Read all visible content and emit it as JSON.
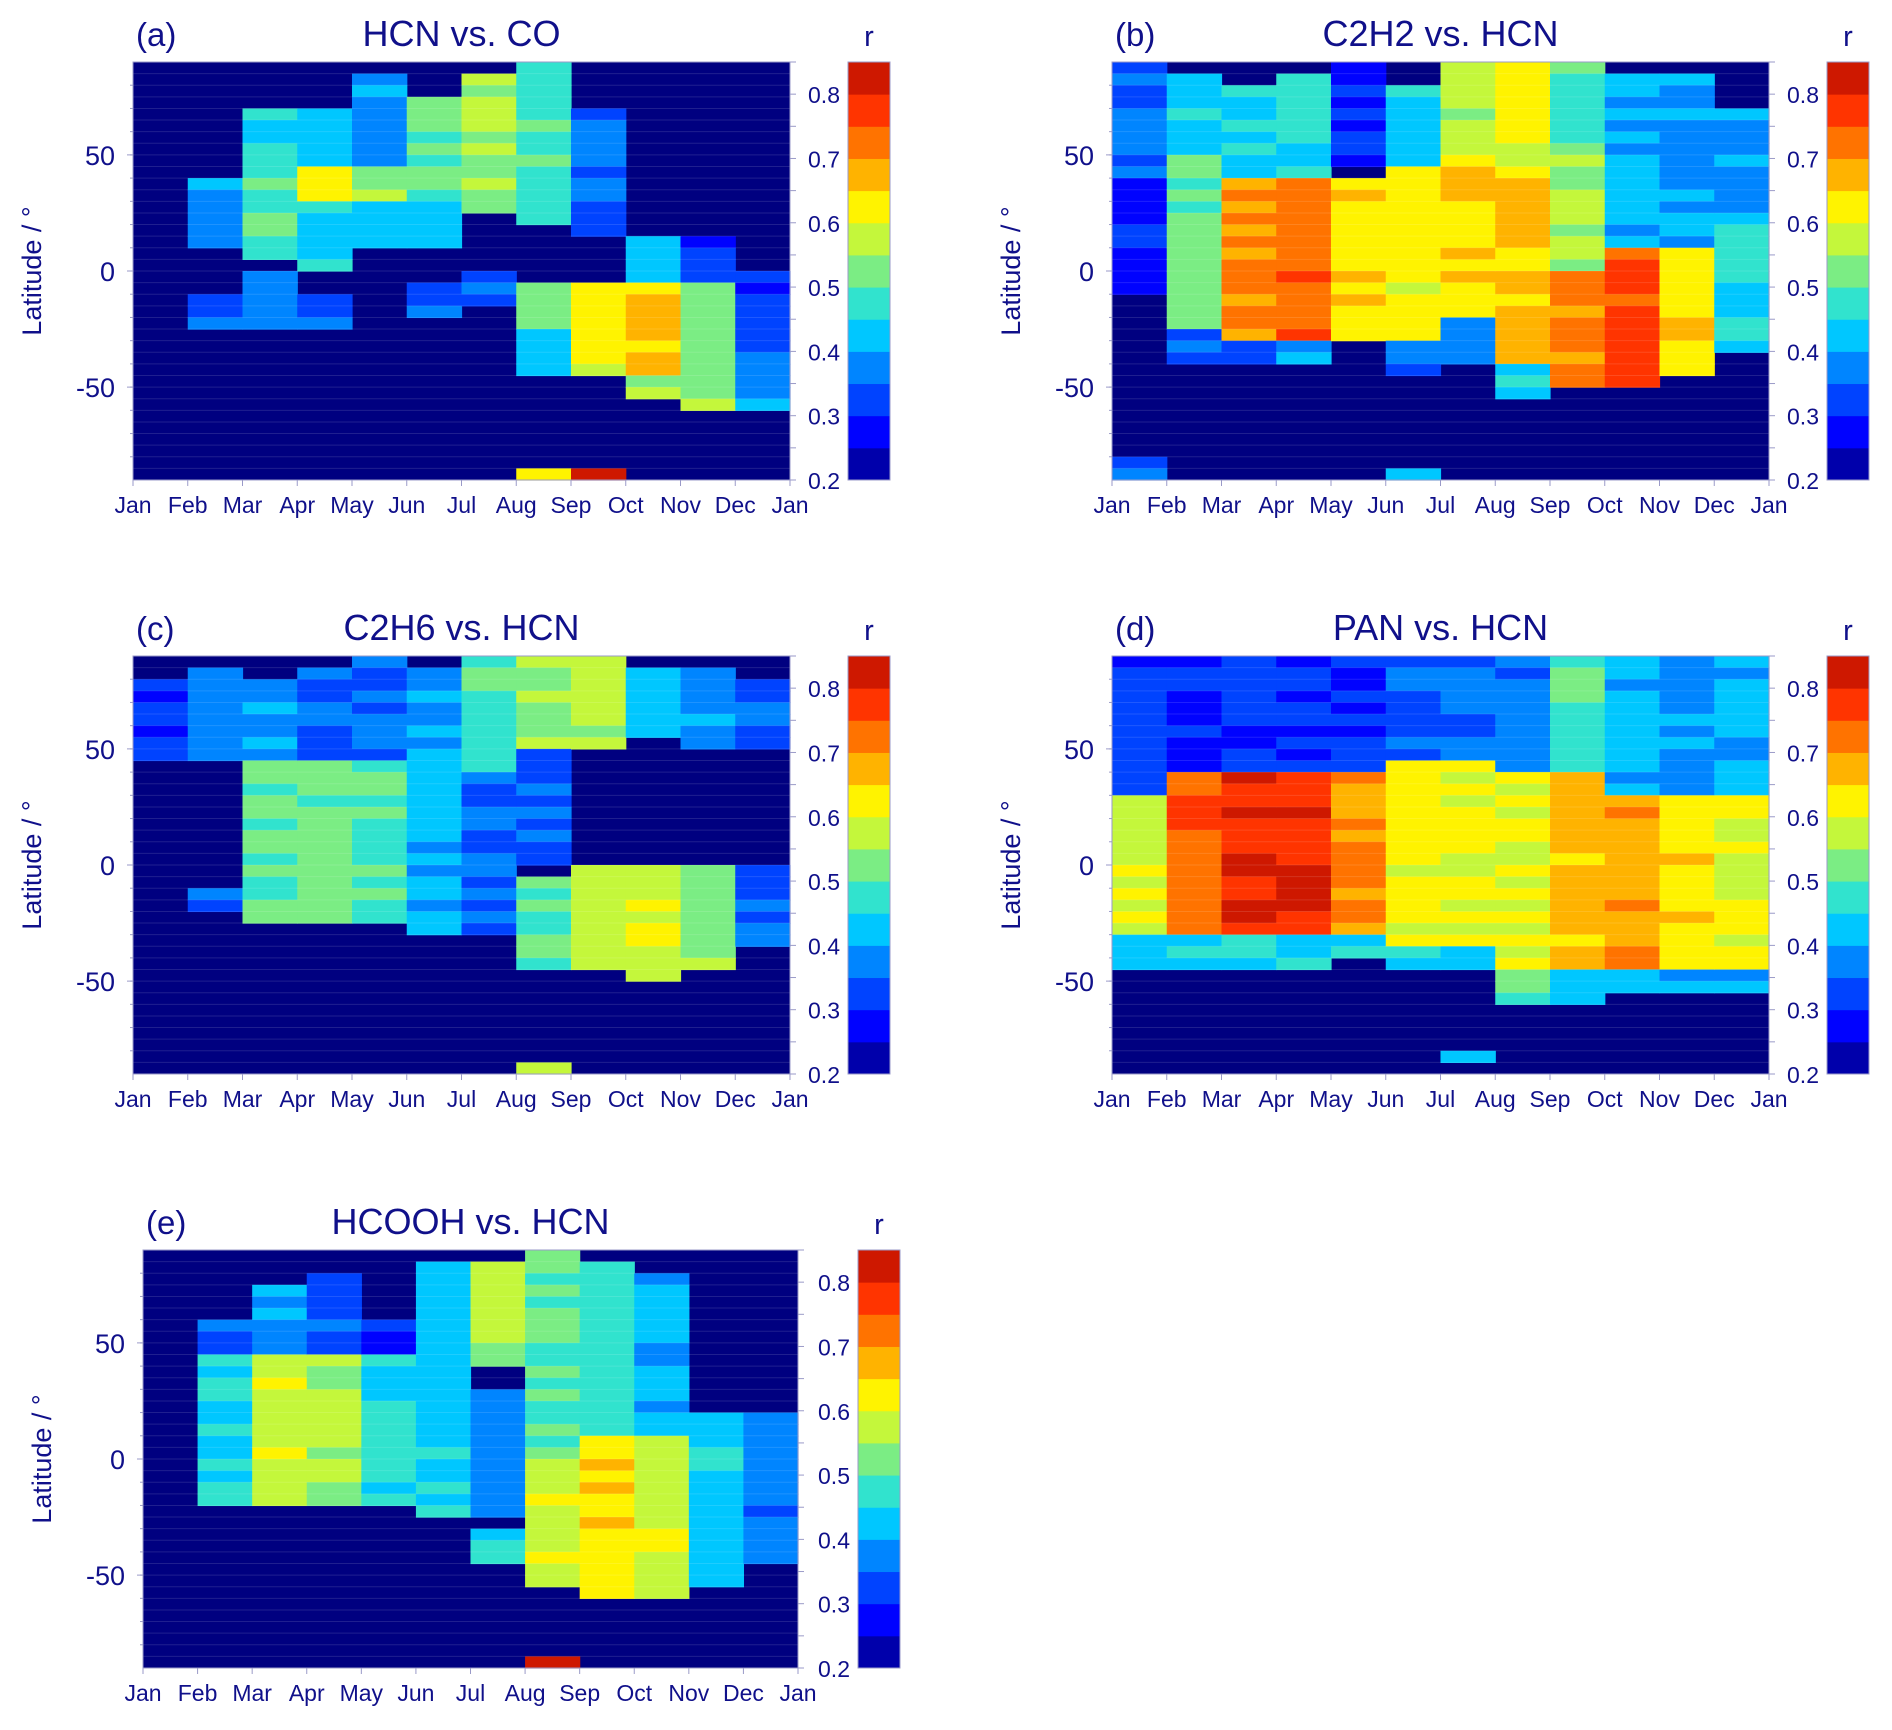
{
  "chart_data": [
    {
      "type": "heatmap",
      "panel_label": "(a)",
      "title": "HCN vs. CO",
      "ylabel": "Latitude / °",
      "xticks": [
        "Jan",
        "Feb",
        "Mar",
        "Apr",
        "May",
        "Jun",
        "Jul",
        "Aug",
        "Sep",
        "Oct",
        "Nov",
        "Dec",
        "Jan"
      ],
      "yticks": [
        "50",
        "0",
        "-50"
      ],
      "colorbar_label": "r",
      "colorbar_ticks": [
        "0.8",
        "0.7",
        "0.6",
        "0.5",
        "0.4",
        "0.3",
        "0.2"
      ],
      "ylim": [
        -90,
        90
      ],
      "zlim": [
        0.2,
        0.85
      ],
      "grid_rows": 36,
      "profiles": [
        [],
        [
          [
            10,
            40,
            0.39
          ],
          [
            -25,
            -10,
            0.33
          ]
        ],
        [
          [
            5,
            45,
            0.48
          ],
          [
            45,
            70,
            0.47
          ],
          [
            -25,
            0,
            0.37
          ]
        ],
        [
          [
            30,
            45,
            0.63
          ],
          [
            0,
            30,
            0.43
          ],
          [
            45,
            70,
            0.43
          ],
          [
            -25,
            -10,
            0.37
          ]
        ],
        [
          [
            30,
            45,
            0.56
          ],
          [
            45,
            85,
            0.38
          ],
          [
            10,
            30,
            0.43
          ]
        ],
        [
          [
            35,
            75,
            0.52
          ],
          [
            10,
            35,
            0.43
          ],
          [
            -20,
            -5,
            0.35
          ]
        ],
        [
          [
            25,
            85,
            0.54
          ],
          [
            -15,
            0,
            0.33
          ]
        ],
        [
          [
            20,
            90,
            0.48
          ],
          [
            -25,
            -5,
            0.55
          ],
          [
            -45,
            -25,
            0.45
          ],
          [
            -90,
            -85,
            0.6
          ]
        ],
        [
          [
            -45,
            -5,
            0.62
          ],
          [
            15,
            70,
            0.35
          ],
          [
            -90,
            -85,
            0.85
          ]
        ],
        [
          [
            -45,
            -5,
            0.66
          ],
          [
            -55,
            -45,
            0.55
          ],
          [
            -5,
            15,
            0.4
          ]
        ],
        [
          [
            -60,
            -5,
            0.53
          ],
          [
            -5,
            15,
            0.32
          ]
        ],
        [
          [
            -60,
            -35,
            0.4
          ],
          [
            -35,
            0,
            0.32
          ]
        ]
      ]
    },
    {
      "type": "heatmap",
      "panel_label": "(b)",
      "title": "C2H2 vs. HCN",
      "ylabel": "Latitude / °",
      "xticks": [
        "Jan",
        "Feb",
        "Mar",
        "Apr",
        "May",
        "Jun",
        "Jul",
        "Aug",
        "Sep",
        "Oct",
        "Nov",
        "Dec",
        "Jan"
      ],
      "yticks": [
        "50",
        "0",
        "-50"
      ],
      "colorbar_label": "r",
      "colorbar_ticks": [
        "0.8",
        "0.7",
        "0.6",
        "0.5",
        "0.4",
        "0.3",
        "0.2"
      ],
      "ylim": [
        -90,
        90
      ],
      "zlim": [
        0.2,
        0.85
      ],
      "grid_rows": 36,
      "profiles": [
        [
          [
            40,
            90,
            0.36
          ],
          [
            -10,
            40,
            0.29
          ],
          [
            -90,
            -80,
            0.33
          ]
        ],
        [
          [
            -25,
            50,
            0.52
          ],
          [
            50,
            85,
            0.45
          ],
          [
            -40,
            -25,
            0.36
          ]
        ],
        [
          [
            -30,
            40,
            0.72
          ],
          [
            40,
            80,
            0.46
          ],
          [
            -40,
            -30,
            0.35
          ]
        ],
        [
          [
            -30,
            40,
            0.73
          ],
          [
            40,
            85,
            0.45
          ],
          [
            -40,
            -30,
            0.4
          ]
        ],
        [
          [
            -30,
            40,
            0.64
          ],
          [
            45,
            90,
            0.3
          ]
        ],
        [
          [
            -30,
            45,
            0.62
          ],
          [
            45,
            80,
            0.43
          ],
          [
            -45,
            -30,
            0.37
          ],
          [
            -90,
            -85,
            0.42
          ]
        ],
        [
          [
            -20,
            50,
            0.65
          ],
          [
            50,
            90,
            0.57
          ],
          [
            -40,
            -20,
            0.37
          ]
        ],
        [
          [
            -40,
            40,
            0.67
          ],
          [
            40,
            90,
            0.6
          ],
          [
            -55,
            -40,
            0.45
          ]
        ],
        [
          [
            -50,
            0,
            0.72
          ],
          [
            0,
            50,
            0.55
          ],
          [
            50,
            90,
            0.49
          ]
        ],
        [
          [
            -50,
            10,
            0.77
          ],
          [
            10,
            85,
            0.4
          ]
        ],
        [
          [
            -45,
            10,
            0.64
          ],
          [
            10,
            85,
            0.38
          ]
        ],
        [
          [
            -35,
            20,
            0.47
          ],
          [
            20,
            70,
            0.38
          ]
        ]
      ]
    },
    {
      "type": "heatmap",
      "panel_label": "(c)",
      "title": "C2H6 vs. HCN",
      "ylabel": "Latitude / °",
      "xticks": [
        "Jan",
        "Feb",
        "Mar",
        "Apr",
        "May",
        "Jun",
        "Jul",
        "Aug",
        "Sep",
        "Oct",
        "Nov",
        "Dec",
        "Jan"
      ],
      "yticks": [
        "50",
        "0",
        "-50"
      ],
      "colorbar_label": "r",
      "colorbar_ticks": [
        "0.8",
        "0.7",
        "0.6",
        "0.5",
        "0.4",
        "0.3",
        "0.2"
      ],
      "ylim": [
        -90,
        90
      ],
      "zlim": [
        0.2,
        0.85
      ],
      "grid_rows": 36,
      "profiles": [
        [
          [
            45,
            80,
            0.32
          ]
        ],
        [
          [
            45,
            85,
            0.37
          ],
          [
            -20,
            -10,
            0.37
          ]
        ],
        [
          [
            -25,
            45,
            0.5
          ],
          [
            45,
            80,
            0.38
          ]
        ],
        [
          [
            -25,
            45,
            0.52
          ],
          [
            45,
            85,
            0.35
          ]
        ],
        [
          [
            -25,
            45,
            0.49
          ],
          [
            45,
            90,
            0.35
          ]
        ],
        [
          [
            -30,
            50,
            0.42
          ],
          [
            50,
            85,
            0.4
          ]
        ],
        [
          [
            -30,
            40,
            0.34
          ],
          [
            40,
            90,
            0.48
          ]
        ],
        [
          [
            -45,
            -5,
            0.5
          ],
          [
            50,
            90,
            0.54
          ],
          [
            0,
            50,
            0.33
          ],
          [
            -90,
            -85,
            0.6
          ]
        ],
        [
          [
            -45,
            0,
            0.59
          ],
          [
            50,
            90,
            0.56
          ]
        ],
        [
          [
            -50,
            0,
            0.58
          ],
          [
            55,
            85,
            0.43
          ]
        ],
        [
          [
            -45,
            0,
            0.53
          ],
          [
            50,
            85,
            0.38
          ]
        ],
        [
          [
            -35,
            0,
            0.35
          ],
          [
            50,
            80,
            0.35
          ]
        ]
      ]
    },
    {
      "type": "heatmap",
      "panel_label": "(d)",
      "title": "PAN vs. HCN",
      "ylabel": "Latitude / °",
      "xticks": [
        "Jan",
        "Feb",
        "Mar",
        "Apr",
        "May",
        "Jun",
        "Jul",
        "Aug",
        "Sep",
        "Oct",
        "Nov",
        "Dec",
        "Jan"
      ],
      "yticks": [
        "50",
        "0",
        "-50"
      ],
      "colorbar_label": "r",
      "colorbar_ticks": [
        "0.8",
        "0.7",
        "0.6",
        "0.5",
        "0.4",
        "0.3",
        "0.2"
      ],
      "ylim": [
        -90,
        90
      ],
      "zlim": [
        0.2,
        0.85
      ],
      "grid_rows": 36,
      "profiles": [
        [
          [
            -30,
            30,
            0.58
          ],
          [
            -45,
            -30,
            0.42
          ],
          [
            30,
            90,
            0.32
          ]
        ],
        [
          [
            -30,
            40,
            0.74
          ],
          [
            -45,
            -30,
            0.45
          ],
          [
            40,
            90,
            0.3
          ]
        ],
        [
          [
            -30,
            40,
            0.79
          ],
          [
            -45,
            -30,
            0.45
          ],
          [
            40,
            90,
            0.3
          ]
        ],
        [
          [
            -30,
            40,
            0.79
          ],
          [
            -45,
            -30,
            0.45
          ],
          [
            40,
            90,
            0.3
          ]
        ],
        [
          [
            -30,
            40,
            0.71
          ],
          [
            -40,
            -30,
            0.45
          ],
          [
            40,
            90,
            0.3
          ]
        ],
        [
          [
            -35,
            45,
            0.62
          ],
          [
            -45,
            -35,
            0.45
          ],
          [
            45,
            90,
            0.33
          ]
        ],
        [
          [
            -35,
            45,
            0.6
          ],
          [
            -45,
            -35,
            0.45
          ],
          [
            45,
            90,
            0.35
          ],
          [
            -85,
            -80,
            0.38
          ]
        ],
        [
          [
            -45,
            40,
            0.6
          ],
          [
            -60,
            -45,
            0.48
          ],
          [
            40,
            90,
            0.37
          ]
        ],
        [
          [
            -45,
            40,
            0.67
          ],
          [
            -60,
            -45,
            0.45
          ],
          [
            40,
            90,
            0.48
          ]
        ],
        [
          [
            -45,
            30,
            0.68
          ],
          [
            -55,
            -45,
            0.42
          ],
          [
            30,
            90,
            0.42
          ]
        ],
        [
          [
            -45,
            30,
            0.63
          ],
          [
            -55,
            -45,
            0.42
          ],
          [
            30,
            90,
            0.38
          ]
        ],
        [
          [
            -45,
            30,
            0.61
          ],
          [
            -55,
            -45,
            0.42
          ],
          [
            30,
            90,
            0.4
          ]
        ]
      ]
    },
    {
      "type": "heatmap",
      "panel_label": "(e)",
      "title": "HCOOH vs. HCN",
      "ylabel": "Latitude / °",
      "xticks": [
        "Jan",
        "Feb",
        "Mar",
        "Apr",
        "May",
        "Jun",
        "Jul",
        "Aug",
        "Sep",
        "Oct",
        "Nov",
        "Dec",
        "Jan"
      ],
      "yticks": [
        "50",
        "0",
        "-50"
      ],
      "colorbar_label": "r",
      "colorbar_ticks": [
        "0.8",
        "0.7",
        "0.6",
        "0.5",
        "0.4",
        "0.3",
        "0.2"
      ],
      "ylim": [
        -90,
        90
      ],
      "zlim": [
        0.2,
        0.85
      ],
      "grid_rows": 36,
      "profiles": [
        [],
        [
          [
            -20,
            45,
            0.45
          ],
          [
            45,
            60,
            0.33
          ]
        ],
        [
          [
            -20,
            45,
            0.58
          ],
          [
            45,
            75,
            0.4
          ]
        ],
        [
          [
            -20,
            45,
            0.56
          ],
          [
            45,
            80,
            0.33
          ]
        ],
        [
          [
            -20,
            45,
            0.47
          ],
          [
            45,
            60,
            0.3
          ]
        ],
        [
          [
            -25,
            85,
            0.43
          ]
        ],
        [
          [
            -45,
            -30,
            0.45
          ],
          [
            -25,
            30,
            0.37
          ],
          [
            40,
            85,
            0.55
          ]
        ],
        [
          [
            -55,
            0,
            0.58
          ],
          [
            0,
            90,
            0.5
          ],
          [
            -90,
            -85,
            0.8
          ]
        ],
        [
          [
            -60,
            10,
            0.64
          ],
          [
            10,
            85,
            0.47
          ]
        ],
        [
          [
            -60,
            10,
            0.58
          ],
          [
            10,
            80,
            0.42
          ]
        ],
        [
          [
            -55,
            20,
            0.43
          ]
        ],
        [
          [
            -45,
            20,
            0.37
          ]
        ]
      ]
    }
  ]
}
